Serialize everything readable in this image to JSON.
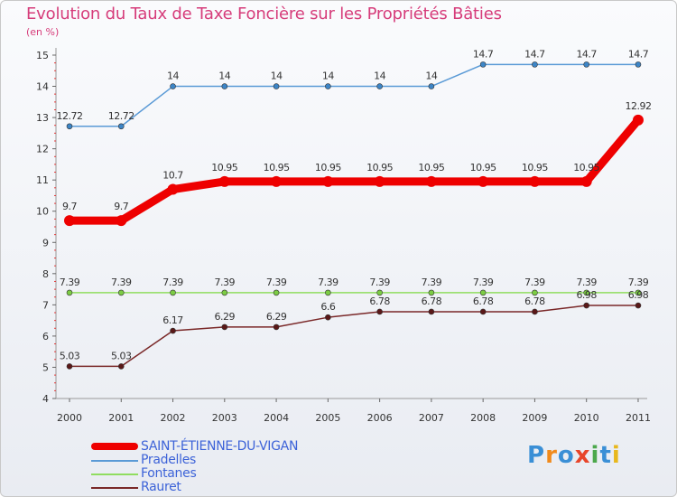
{
  "chart_data": {
    "type": "line",
    "title": "Evolution du Taux de Taxe Foncière sur les Propriétés Bâties",
    "ylabel": "(en %)",
    "xlabel": "",
    "ylim": [
      4,
      15
    ],
    "yticks": [
      4,
      5,
      6,
      7,
      8,
      9,
      10,
      11,
      12,
      13,
      14,
      15
    ],
    "categories": [
      "2000",
      "2001",
      "2002",
      "2003",
      "2004",
      "2005",
      "2006",
      "2007",
      "2008",
      "2009",
      "2010",
      "2011"
    ],
    "series": [
      {
        "name": "SAINT-ÉTIENNE-DU-VIGAN",
        "color": "#ee0000",
        "marker": "#ee0000",
        "values": [
          9.7,
          9.7,
          10.7,
          10.95,
          10.95,
          10.95,
          10.95,
          10.95,
          10.95,
          10.95,
          10.95,
          12.92
        ],
        "labels": [
          "9.7",
          "9.7",
          "10.7",
          "10.95",
          "10.95",
          "10.95",
          "10.95",
          "10.95",
          "10.95",
          "10.95",
          "10.95",
          "12.92"
        ]
      },
      {
        "name": "Pradelles",
        "color": "#5a9ad6",
        "marker": "#3d85c6",
        "values": [
          12.72,
          12.72,
          14,
          14,
          14,
          14,
          14,
          14,
          14.7,
          14.7,
          14.7,
          14.7
        ],
        "labels": [
          "12.72",
          "12.72",
          "14",
          "14",
          "14",
          "14",
          "14",
          "14",
          "14.7",
          "14.7",
          "14.7",
          "14.7"
        ]
      },
      {
        "name": "Fontanes",
        "color": "#90dd60",
        "marker": "#7ccc44",
        "values": [
          7.39,
          7.39,
          7.39,
          7.39,
          7.39,
          7.39,
          7.39,
          7.39,
          7.39,
          7.39,
          7.39,
          7.39
        ],
        "labels": [
          "7.39",
          "7.39",
          "7.39",
          "7.39",
          "7.39",
          "7.39",
          "7.39",
          "7.39",
          "7.39",
          "7.39",
          "7.39",
          "7.39"
        ]
      },
      {
        "name": "Rauret",
        "color": "#7a2828",
        "marker": "#5a1818",
        "values": [
          5.03,
          5.03,
          6.17,
          6.29,
          6.29,
          6.6,
          6.78,
          6.78,
          6.78,
          6.78,
          6.98,
          6.98
        ],
        "labels": [
          "5.03",
          "5.03",
          "6.17",
          "6.29",
          "6.29",
          "6.6",
          "6.78",
          "6.78",
          "6.78",
          "6.78",
          "6.98",
          "6.98"
        ]
      }
    ],
    "legend_position": "bottom-left"
  },
  "header": {
    "title": "Evolution du Taux de Taxe Foncière sur les Propriétés Bâties",
    "subtitle": "(en %)"
  },
  "legend": [
    {
      "name": "SAINT-ÉTIENNE-DU-VIGAN",
      "color": "#ee0000"
    },
    {
      "name": "Pradelles",
      "color": "#5a9ad6"
    },
    {
      "name": "Fontanes",
      "color": "#90dd60"
    },
    {
      "name": "Rauret",
      "color": "#7a2828"
    }
  ],
  "logo": {
    "letters": [
      "P",
      "r",
      "o",
      "x",
      "i",
      "t",
      "i"
    ],
    "colors": [
      "#3a8fd6",
      "#f08a1c",
      "#3a8fd6",
      "#e8452a",
      "#4ca84c",
      "#3a8fd6",
      "#e8b81c"
    ]
  }
}
